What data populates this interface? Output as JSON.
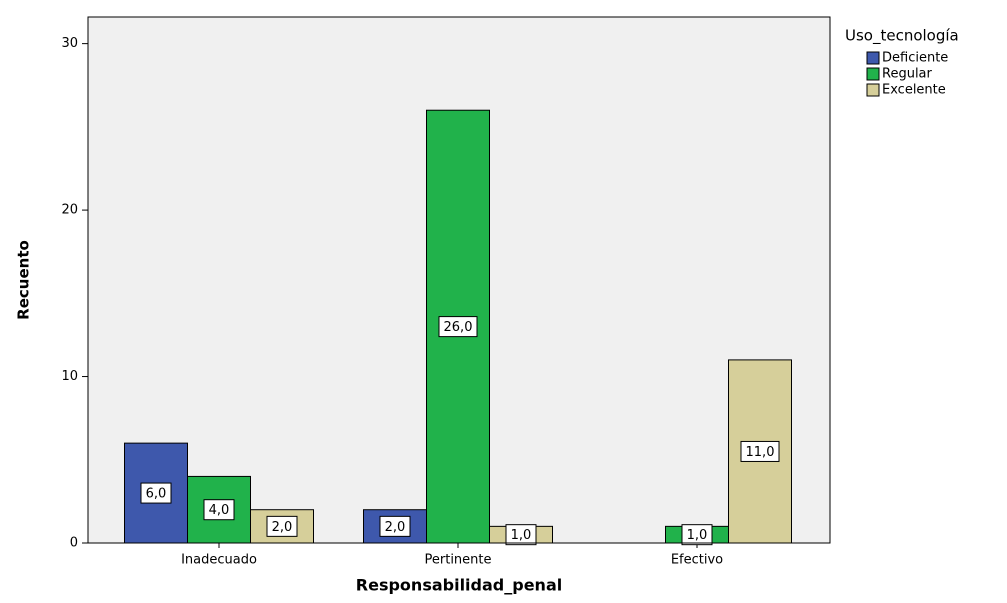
{
  "chart_data": {
    "type": "bar",
    "x_label": "Responsabilidad_penal",
    "y_label": "Recuento",
    "legend_title": "Uso_tecnología",
    "legend_position": "right",
    "categories": [
      "Inadecuado",
      "Pertinente",
      "Efectivo"
    ],
    "series": [
      {
        "name": "Deficiente",
        "color": "#3e58ac",
        "values": [
          6,
          2,
          null
        ],
        "value_labels": [
          "6,0",
          "2,0",
          null
        ]
      },
      {
        "name": "Regular",
        "color": "#21b24b",
        "values": [
          4,
          26,
          1
        ],
        "value_labels": [
          "4,0",
          "26,0",
          "1,0"
        ]
      },
      {
        "name": "Excelente",
        "color": "#d6cf9a",
        "values": [
          2,
          1,
          11
        ],
        "value_labels": [
          "2,0",
          "1,0",
          "11,0"
        ]
      }
    ],
    "ylim": [
      0,
      31.6
    ],
    "yticks": [
      0,
      10,
      20,
      30
    ],
    "grid": false
  }
}
